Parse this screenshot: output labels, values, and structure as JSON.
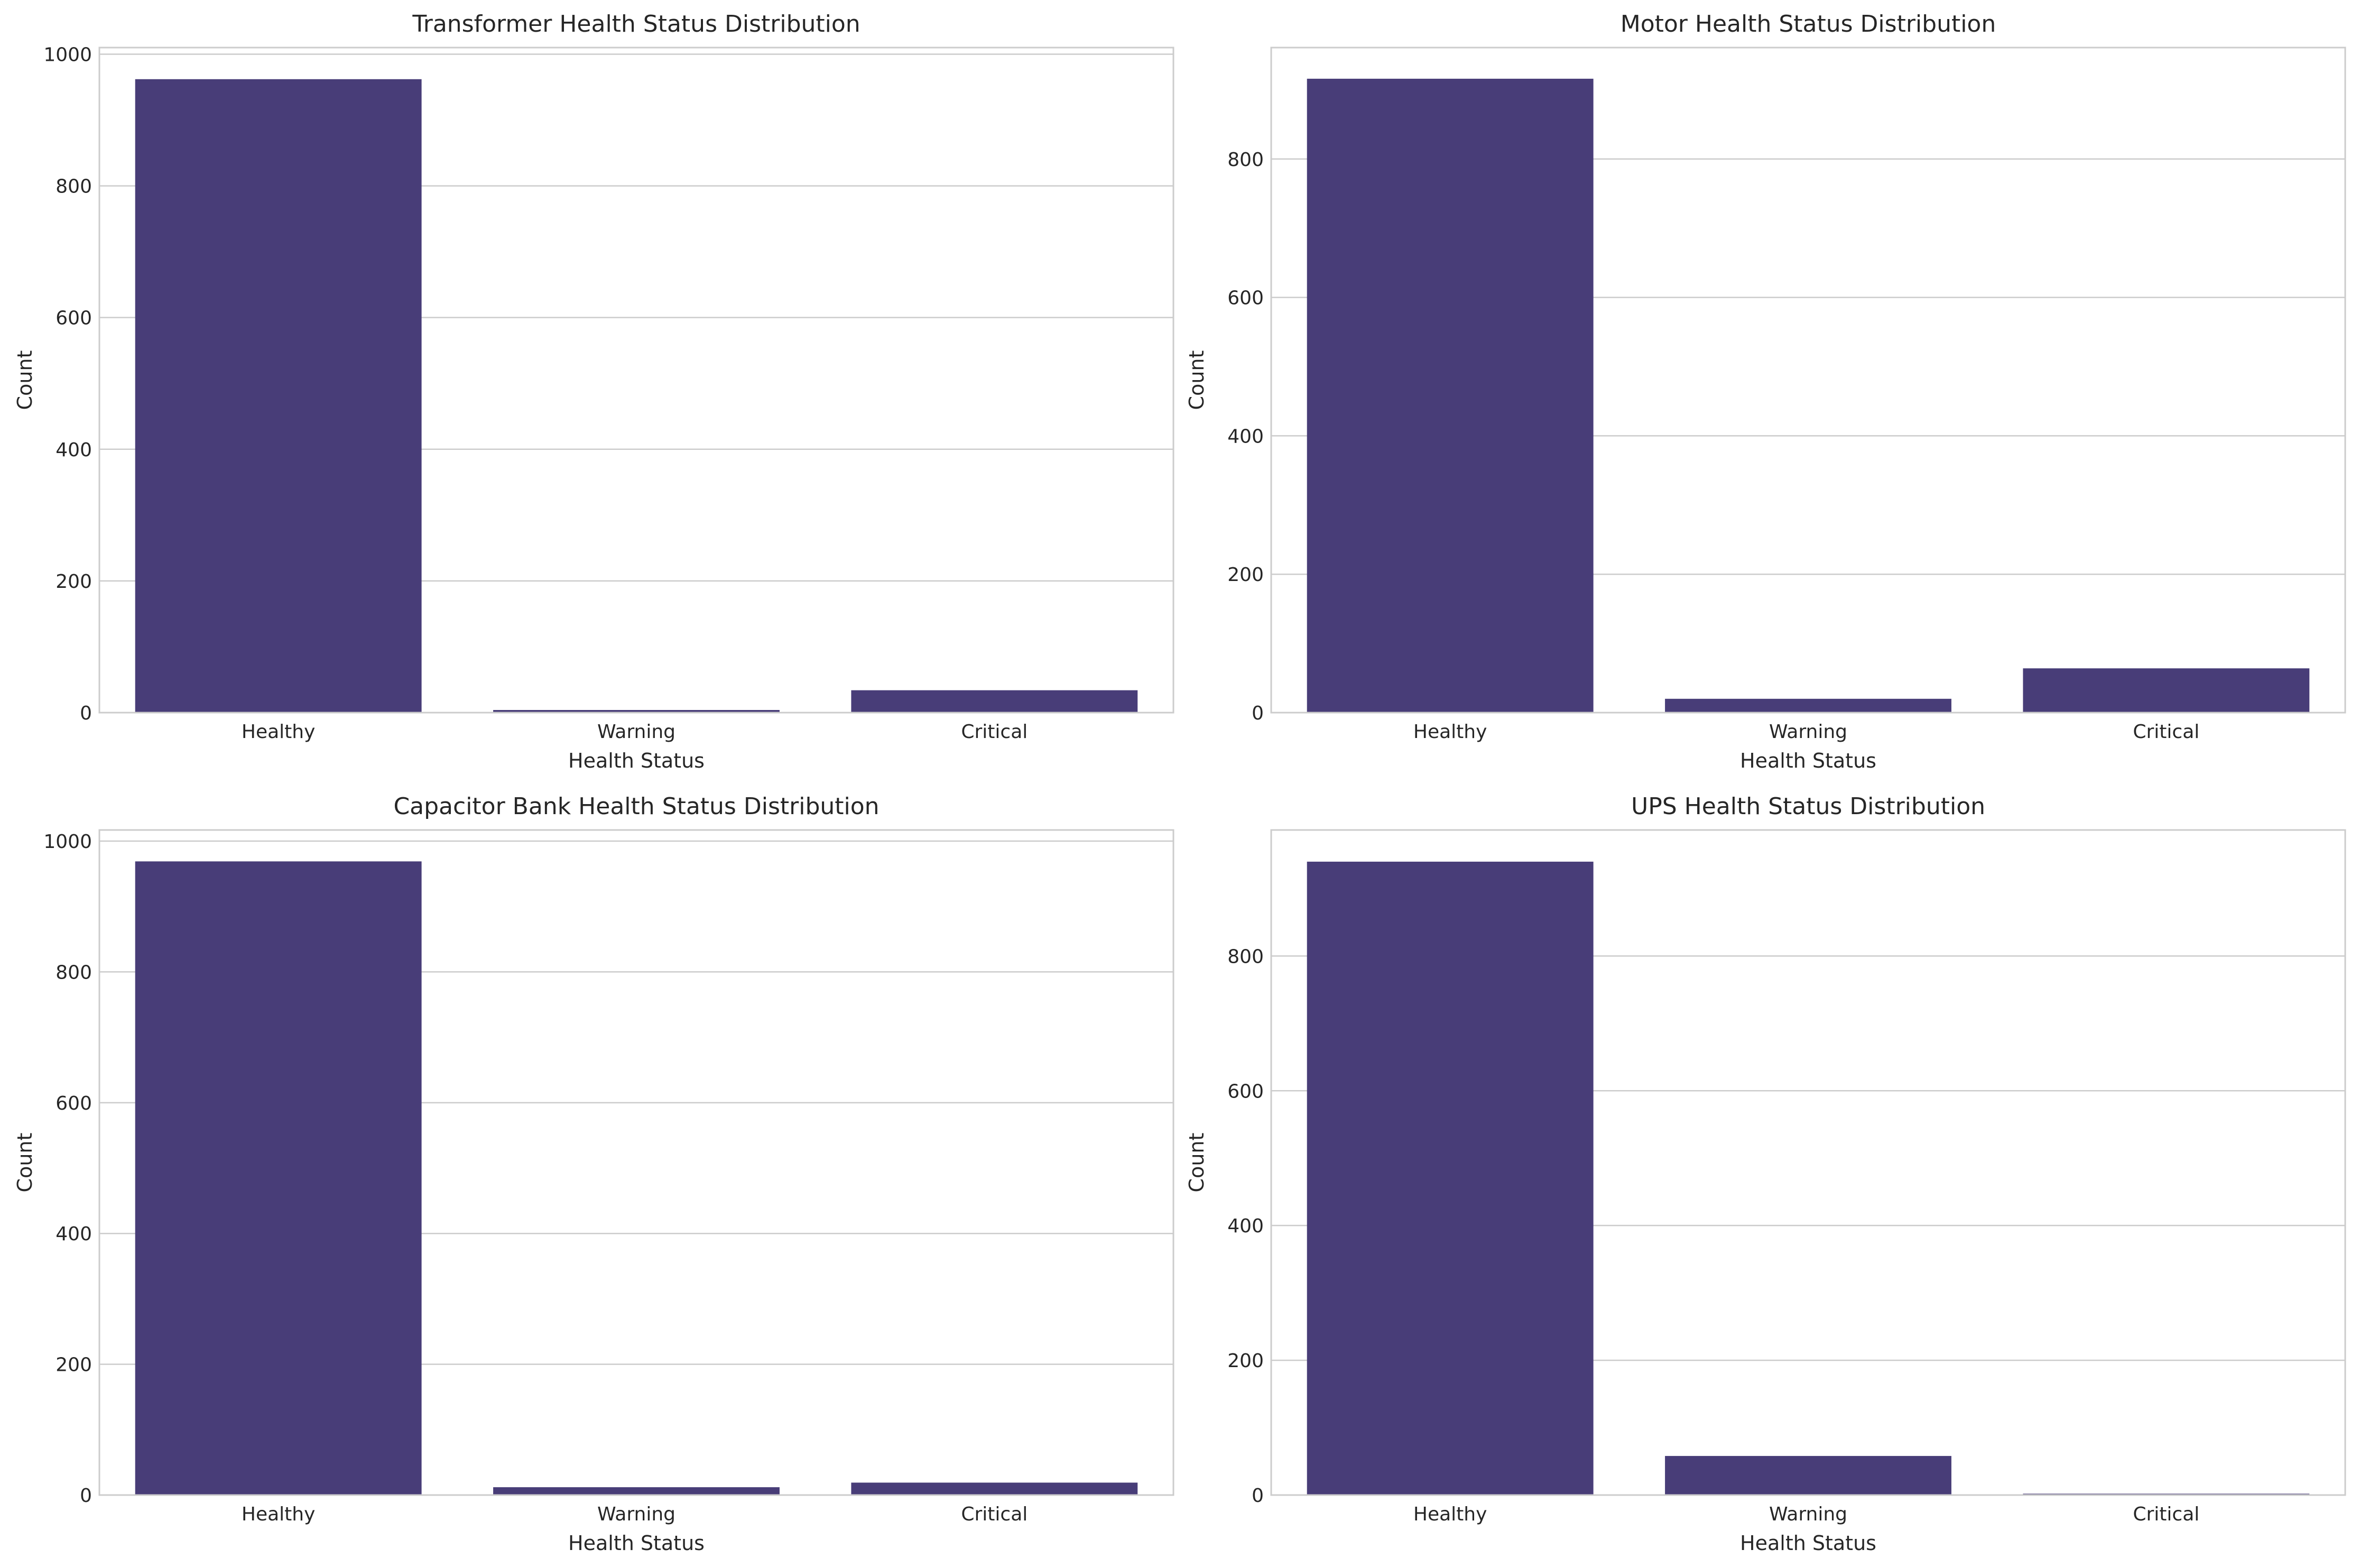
{
  "bar_color": "#483d78",
  "chart_data": [
    {
      "type": "bar",
      "title": "Transformer Health Status Distribution",
      "xlabel": "Health Status",
      "ylabel": "Count",
      "categories": [
        "Healthy",
        "Warning",
        "Critical"
      ],
      "values": [
        962,
        4,
        34
      ],
      "ylim": [
        0,
        1010
      ],
      "yticks": [
        0,
        200,
        400,
        600,
        800,
        1000
      ],
      "grid": "horizontal"
    },
    {
      "type": "bar",
      "title": "Motor Health Status Distribution",
      "xlabel": "Health Status",
      "ylabel": "Count",
      "categories": [
        "Healthy",
        "Warning",
        "Critical"
      ],
      "values": [
        916,
        20,
        64
      ],
      "ylim": [
        0,
        961
      ],
      "yticks": [
        0,
        200,
        400,
        600,
        800
      ],
      "grid": "horizontal"
    },
    {
      "type": "bar",
      "title": "Capacitor Bank Health Status Distribution",
      "xlabel": "Health Status",
      "ylabel": "Count",
      "categories": [
        "Healthy",
        "Warning",
        "Critical"
      ],
      "values": [
        969,
        12,
        19
      ],
      "ylim": [
        0,
        1017
      ],
      "yticks": [
        0,
        200,
        400,
        600,
        800,
        1000
      ],
      "grid": "horizontal"
    },
    {
      "type": "bar",
      "title": "UPS Health Status Distribution",
      "xlabel": "Health Status",
      "ylabel": "Count",
      "categories": [
        "Healthy",
        "Warning",
        "Critical"
      ],
      "values": [
        940,
        58,
        2
      ],
      "ylim": [
        0,
        987
      ],
      "yticks": [
        0,
        200,
        400,
        600,
        800
      ],
      "grid": "horizontal"
    }
  ]
}
